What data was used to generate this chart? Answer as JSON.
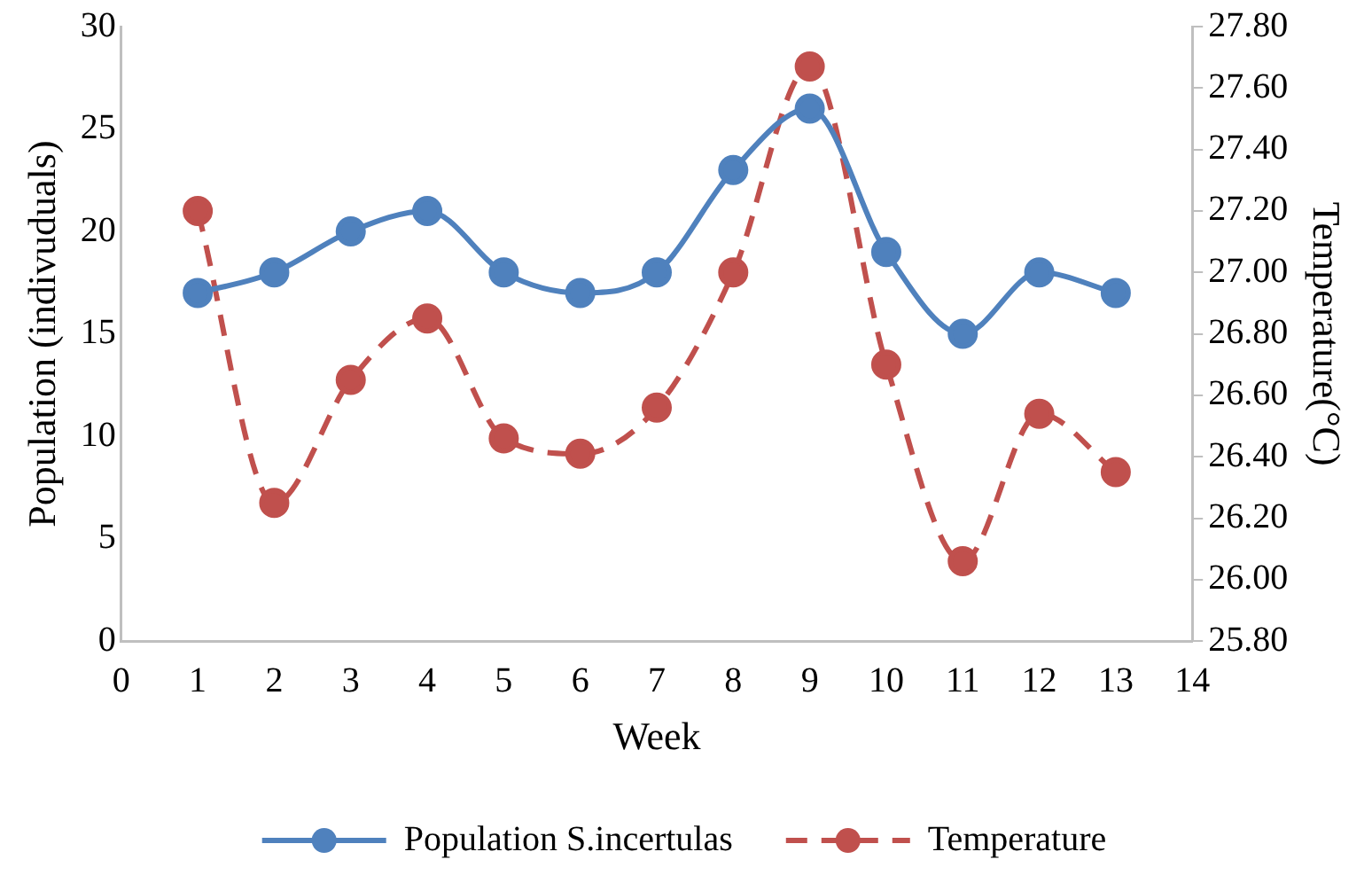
{
  "chart_data": {
    "type": "line",
    "xlabel": "Week",
    "ylabel": "Population (indivuduals)",
    "y2label": "Temperature(°C)",
    "x": [
      1,
      2,
      3,
      4,
      5,
      6,
      7,
      8,
      9,
      10,
      11,
      12,
      13
    ],
    "xlim": [
      0,
      14
    ],
    "xticks": [
      0,
      1,
      2,
      3,
      4,
      5,
      6,
      7,
      8,
      9,
      10,
      11,
      12,
      13,
      14
    ],
    "ylim": [
      0,
      30
    ],
    "yticks": [
      0,
      5,
      10,
      15,
      20,
      25,
      30
    ],
    "y2lim": [
      25.8,
      27.8
    ],
    "y2ticks": [
      {
        "value": 25.8,
        "label": "25.80"
      },
      {
        "value": 26.0,
        "label": "26.00"
      },
      {
        "value": 26.2,
        "label": "26.20"
      },
      {
        "value": 26.4,
        "label": "26.40"
      },
      {
        "value": 26.6,
        "label": "26.60"
      },
      {
        "value": 26.8,
        "label": "26.80"
      },
      {
        "value": 27.0,
        "label": "27.00"
      },
      {
        "value": 27.2,
        "label": "27.20"
      },
      {
        "value": 27.4,
        "label": "27.40"
      },
      {
        "value": 27.6,
        "label": "27.60"
      },
      {
        "value": 27.8,
        "label": "27.80"
      }
    ],
    "series": [
      {
        "name": "Population S.incertulas",
        "color": "#4f81bd",
        "values": [
          17,
          18,
          20,
          21,
          18,
          17,
          18,
          23,
          26,
          19,
          15,
          18,
          17
        ],
        "line_style": "solid"
      },
      {
        "name": "Temperature",
        "color": "#c0504d",
        "axis": "y2",
        "values": [
          27.2,
          26.25,
          26.65,
          26.85,
          26.46,
          26.41,
          26.56,
          27.0,
          27.67,
          26.7,
          26.06,
          26.54,
          26.35
        ],
        "line_style": "dashed"
      }
    ],
    "marker": "circle",
    "grid": false,
    "legend": "bottom"
  }
}
